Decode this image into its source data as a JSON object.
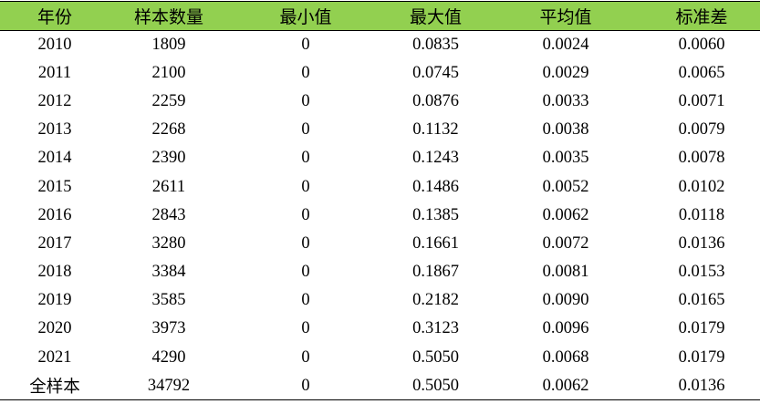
{
  "table": {
    "headers": [
      "年份",
      "样本数量",
      "最小值",
      "最大值",
      "平均值",
      "标准差"
    ],
    "rows": [
      [
        "2010",
        "1809",
        "0",
        "0.0835",
        "0.0024",
        "0.0060"
      ],
      [
        "2011",
        "2100",
        "0",
        "0.0745",
        "0.0029",
        "0.0065"
      ],
      [
        "2012",
        "2259",
        "0",
        "0.0876",
        "0.0033",
        "0.0071"
      ],
      [
        "2013",
        "2268",
        "0",
        "0.1132",
        "0.0038",
        "0.0079"
      ],
      [
        "2014",
        "2390",
        "0",
        "0.1243",
        "0.0035",
        "0.0078"
      ],
      [
        "2015",
        "2611",
        "0",
        "0.1486",
        "0.0052",
        "0.0102"
      ],
      [
        "2016",
        "2843",
        "0",
        "0.1385",
        "0.0062",
        "0.0118"
      ],
      [
        "2017",
        "3280",
        "0",
        "0.1661",
        "0.0072",
        "0.0136"
      ],
      [
        "2018",
        "3384",
        "0",
        "0.1867",
        "0.0081",
        "0.0153"
      ],
      [
        "2019",
        "3585",
        "0",
        "0.2182",
        "0.0090",
        "0.0165"
      ],
      [
        "2020",
        "3973",
        "0",
        "0.3123",
        "0.0096",
        "0.0179"
      ],
      [
        "2021",
        "4290",
        "0",
        "0.5050",
        "0.0068",
        "0.0179"
      ],
      [
        "全样本",
        "34792",
        "0",
        "0.5050",
        "0.0062",
        "0.0136"
      ]
    ],
    "header_color": "#92d050"
  }
}
